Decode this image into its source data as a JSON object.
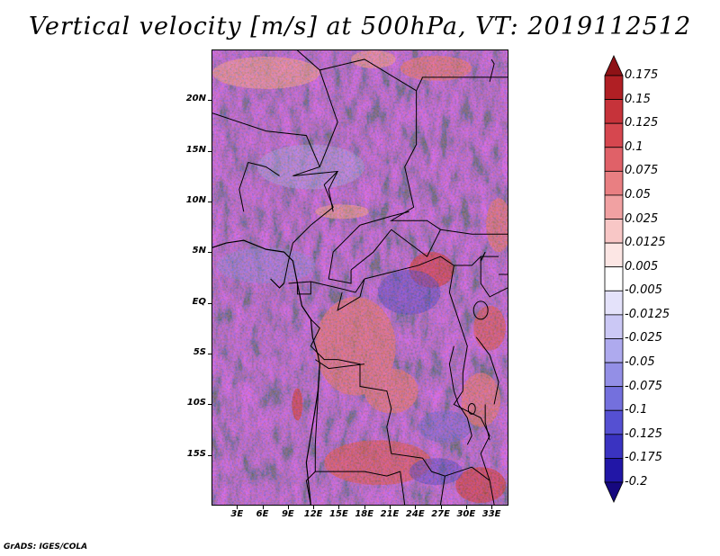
{
  "title": "Vertical velocity [m/s] at 500hPa, VT: 2019112512",
  "credit": "GrADS: IGES/COLA",
  "map": {
    "lon_range": [
      0,
      35
    ],
    "lat_range": [
      -20,
      25
    ],
    "lat_labels": [
      "20N",
      "15N",
      "10N",
      "5N",
      "EQ",
      "5S",
      "10S",
      "15S"
    ],
    "lat_values": [
      20,
      15,
      10,
      5,
      0,
      -5,
      -10,
      -15
    ],
    "lon_labels": [
      "3E",
      "6E",
      "9E",
      "12E",
      "15E",
      "18E",
      "21E",
      "24E",
      "27E",
      "30E",
      "33E"
    ],
    "lon_values": [
      3,
      6,
      9,
      12,
      15,
      18,
      21,
      24,
      27,
      30,
      33
    ]
  },
  "colorbar": {
    "labels": [
      "0.175",
      "0.15",
      "0.125",
      "0.1",
      "0.075",
      "0.05",
      "0.025",
      "0.0125",
      "0.005",
      "-0.005",
      "-0.0125",
      "-0.025",
      "-0.05",
      "-0.075",
      "-0.1",
      "-0.125",
      "-0.175",
      "-0.2"
    ],
    "colors": [
      "#8e1216",
      "#b01f24",
      "#c6333a",
      "#d6474f",
      "#e06168",
      "#e97f82",
      "#f1a1a2",
      "#f8c7c6",
      "#fce6e4",
      "#ffffff",
      "#e4e2fa",
      "#cbc8f5",
      "#aeaaee",
      "#938fe6",
      "#7470dd",
      "#5550d2",
      "#3a33c1",
      "#2116a6",
      "#16087f"
    ]
  }
}
